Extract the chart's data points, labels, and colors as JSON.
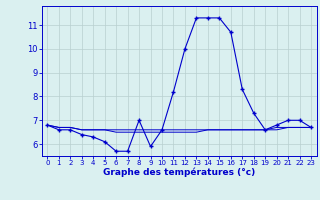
{
  "hours": [
    0,
    1,
    2,
    3,
    4,
    5,
    6,
    7,
    8,
    9,
    10,
    11,
    12,
    13,
    14,
    15,
    16,
    17,
    18,
    19,
    20,
    21,
    22,
    23
  ],
  "temp_main": [
    6.8,
    6.6,
    6.6,
    6.4,
    6.3,
    6.1,
    5.7,
    5.7,
    7.0,
    5.9,
    6.6,
    8.2,
    10.0,
    11.3,
    11.3,
    11.3,
    10.7,
    8.3,
    7.3,
    6.6,
    6.8,
    7.0,
    7.0,
    6.7
  ],
  "temp_flat1": [
    6.8,
    6.7,
    6.7,
    6.6,
    6.6,
    6.6,
    6.6,
    6.6,
    6.6,
    6.6,
    6.6,
    6.6,
    6.6,
    6.6,
    6.6,
    6.6,
    6.6,
    6.6,
    6.6,
    6.6,
    6.7,
    6.7,
    6.7,
    6.7
  ],
  "temp_flat2": [
    6.8,
    6.7,
    6.7,
    6.6,
    6.6,
    6.6,
    6.5,
    6.5,
    6.5,
    6.5,
    6.5,
    6.5,
    6.5,
    6.5,
    6.6,
    6.6,
    6.6,
    6.6,
    6.6,
    6.6,
    6.6,
    6.7,
    6.7,
    6.7
  ],
  "line_color": "#0000cc",
  "bg_color": "#daf0f0",
  "grid_color": "#b8d0d0",
  "xlabel": "Graphe des températures (°c)",
  "ylim": [
    5.5,
    11.8
  ],
  "xlim": [
    -0.5,
    23.5
  ],
  "yticks": [
    6,
    7,
    8,
    9,
    10,
    11
  ],
  "xticks": [
    0,
    1,
    2,
    3,
    4,
    5,
    6,
    7,
    8,
    9,
    10,
    11,
    12,
    13,
    14,
    15,
    16,
    17,
    18,
    19,
    20,
    21,
    22,
    23
  ]
}
